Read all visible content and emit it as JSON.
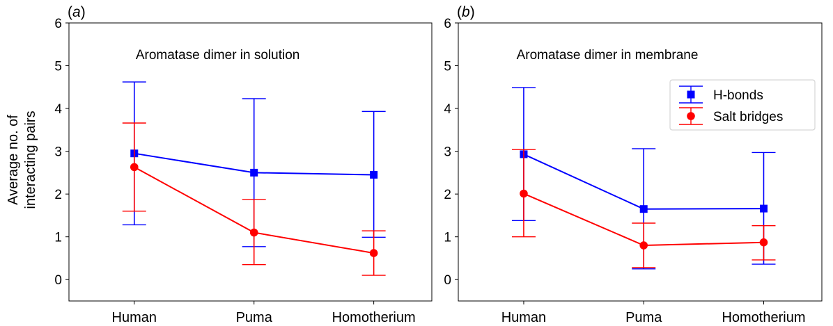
{
  "chart_data": [
    {
      "type": "line",
      "panel_label": "(a)",
      "annotation": "Aromatase dimer in solution",
      "ylabel_line1": "Average no. of",
      "ylabel_line2": "interacting pairs",
      "categories": [
        "Human",
        "Puma",
        "Homotherium"
      ],
      "yticks": [
        "0",
        "1",
        "2",
        "3",
        "4",
        "5",
        "6"
      ],
      "ylim": [
        -0.5,
        6
      ],
      "series": [
        {
          "name": "H-bonds",
          "color": "#0000ff",
          "marker": "square",
          "values": [
            2.95,
            2.5,
            2.45
          ],
          "err_upper": [
            4.62,
            4.23,
            3.93
          ],
          "err_lower": [
            1.28,
            0.77,
            0.99
          ]
        },
        {
          "name": "Salt bridges",
          "color": "#ff0000",
          "marker": "circle",
          "values": [
            2.63,
            1.1,
            0.62
          ],
          "err_upper": [
            3.66,
            1.87,
            1.14
          ],
          "err_lower": [
            1.6,
            0.35,
            0.1
          ]
        }
      ]
    },
    {
      "type": "line",
      "panel_label": "(b)",
      "annotation": "Aromatase dimer in membrane",
      "categories": [
        "Human",
        "Puma",
        "Homotherium"
      ],
      "yticks": [
        "0",
        "1",
        "2",
        "3",
        "4",
        "5",
        "6"
      ],
      "ylim": [
        -0.5,
        6
      ],
      "legend": "top-right",
      "series": [
        {
          "name": "H-bonds",
          "color": "#0000ff",
          "marker": "square",
          "values": [
            2.93,
            1.65,
            1.66
          ],
          "err_upper": [
            4.49,
            3.06,
            2.97
          ],
          "err_lower": [
            1.38,
            0.25,
            0.36
          ]
        },
        {
          "name": "Salt bridges",
          "color": "#ff0000",
          "marker": "circle",
          "values": [
            2.01,
            0.8,
            0.87
          ],
          "err_upper": [
            3.04,
            1.32,
            1.26
          ],
          "err_lower": [
            1.0,
            0.28,
            0.46
          ]
        }
      ]
    }
  ]
}
